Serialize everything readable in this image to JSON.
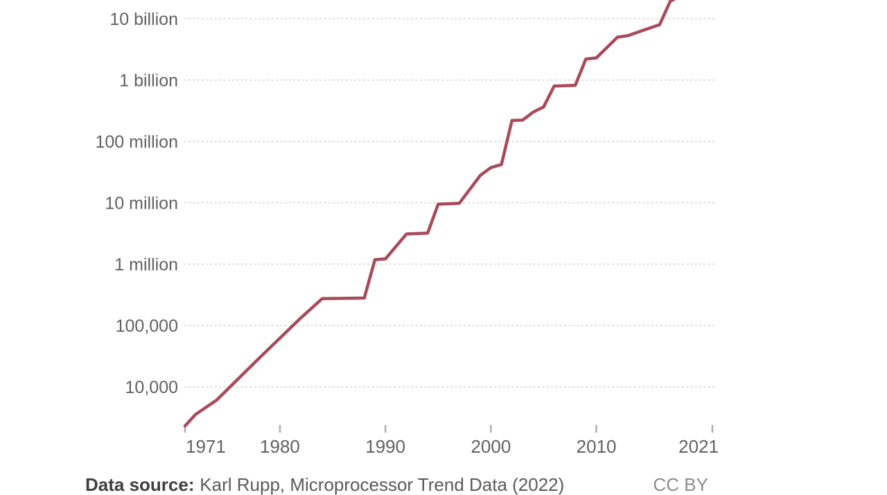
{
  "page": {
    "background": "#ffffff"
  },
  "footer": {
    "source_label": "Data source:",
    "source_text": "Karl Rupp, Microprocessor Trend Data (2022)",
    "license_label": "CC BY"
  },
  "colors": {
    "line": "#a94a5b",
    "grid": "#cbcbcb",
    "axis_tick": "#adadad",
    "axis_label": "#616161",
    "footer_bold": "#3f3f3f",
    "footer_text": "#5a5a5a",
    "license_text": "#8c8c8c"
  },
  "chart_data": {
    "type": "line",
    "y_scale": "log10",
    "grid": "dotted-horizontal",
    "legend": "none",
    "x_range": [
      1971,
      2021
    ],
    "y_range_visible": [
      2000,
      20000000000
    ],
    "x_ticks": [
      {
        "value": 1971,
        "label": "1971"
      },
      {
        "value": 1980,
        "label": "1980"
      },
      {
        "value": 1990,
        "label": "1990"
      },
      {
        "value": 2000,
        "label": "2000"
      },
      {
        "value": 2010,
        "label": "2010"
      },
      {
        "value": 2021,
        "label": "2021"
      }
    ],
    "y_ticks": [
      {
        "value": 10000,
        "label": "10,000"
      },
      {
        "value": 100000,
        "label": "100,000"
      },
      {
        "value": 1000000,
        "label": "1 million"
      },
      {
        "value": 10000000,
        "label": "10 million"
      },
      {
        "value": 100000000,
        "label": "100 million"
      },
      {
        "value": 1000000000,
        "label": "1 billion"
      },
      {
        "value": 10000000000,
        "label": "10 billion"
      }
    ],
    "series": [
      {
        "points": [
          [
            1971,
            2308
          ],
          [
            1972,
            3555
          ],
          [
            1974,
            6100
          ],
          [
            1978,
            29000
          ],
          [
            1982,
            134000
          ],
          [
            1984,
            274000
          ],
          [
            1988,
            280000
          ],
          [
            1989,
            1180000
          ],
          [
            1990,
            1220000
          ],
          [
            1992,
            3100000
          ],
          [
            1994,
            3200000
          ],
          [
            1995,
            9500000
          ],
          [
            1997,
            9800000
          ],
          [
            1999,
            28000000
          ],
          [
            2000,
            37500000
          ],
          [
            2001,
            42000000
          ],
          [
            2002,
            220000000
          ],
          [
            2003,
            222000000
          ],
          [
            2004,
            300000000
          ],
          [
            2005,
            365000000
          ],
          [
            2006,
            800000000
          ],
          [
            2008,
            820000000
          ],
          [
            2009,
            2200000000
          ],
          [
            2010,
            2300000000
          ],
          [
            2012,
            5000000000
          ],
          [
            2013,
            5300000000
          ],
          [
            2015,
            7000000000
          ],
          [
            2016,
            8000000000
          ],
          [
            2017,
            19200000000
          ],
          [
            2018,
            23600000000
          ]
        ]
      }
    ]
  }
}
